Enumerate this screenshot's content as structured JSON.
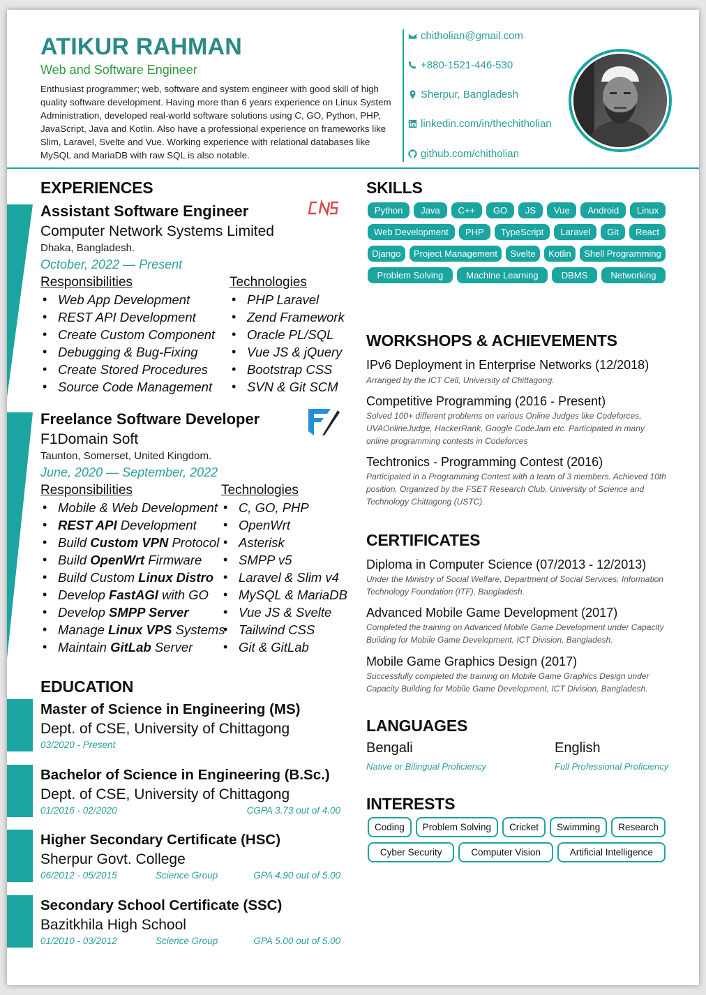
{
  "header": {
    "name": "ATIKUR RAHMAN",
    "role": "Web and Software Engineer",
    "summary": "Enthusiast programmer; web, software and system engineer with good skill of high quality software development. Having more than 6 years experience on Linux System Administration, developed real-world software solutions using C, GO, Python, PHP, JavaScript, Java and Kotlin. Also have a professional experience on frameworks like Slim, Laravel, Svelte and Vue. Working experience with relational databases like MySQL and MariaDB with raw SQL is also notable."
  },
  "contact": {
    "email": "chitholian@gmail.com",
    "phone": "+880-1521-446-530",
    "location": "Sherpur, Bangladesh",
    "linkedin": "linkedin.com/in/thechitholian",
    "github": "github.com/chitholian"
  },
  "experiences": {
    "heading": "EXPERIENCES",
    "jobs": [
      {
        "title": "Assistant Software Engineer",
        "logo_text": "CNS",
        "company": "Computer Network Systems Limited",
        "location": "Dhaka, Bangladesh.",
        "dates": "October, 2022 — Present",
        "resp_heading": "Responsibilities",
        "tech_heading": "Technologies",
        "responsibilities": [
          "Web App Development",
          "REST API Development",
          "Create Custom Component",
          "Debugging & Bug-Fixing",
          "Create Stored Procedures",
          "Source Code Management"
        ],
        "technologies": [
          "PHP Laravel",
          "Zend Framework",
          "Oracle PL/SQL",
          "Vue JS & jQuery",
          "Bootstrap CSS",
          "SVN & Git SCM"
        ]
      },
      {
        "title": "Freelance Software Developer",
        "company": "F1Domain Soft",
        "location": "Taunton, Somerset, United Kingdom.",
        "dates": "June, 2020 — September, 2022",
        "resp_heading": "Responsibilities",
        "tech_heading": "Technologies",
        "responsibilities": [
          {
            "pre": "Mobile & Web Development",
            "bold": "",
            "post": ""
          },
          {
            "pre": "",
            "bold": "REST API",
            "post": " Development"
          },
          {
            "pre": "Build ",
            "bold": "Custom VPN",
            "post": " Protocol"
          },
          {
            "pre": "Build ",
            "bold": "OpenWrt",
            "post": " Firmware"
          },
          {
            "pre": "Build Custom ",
            "bold": "Linux Distro",
            "post": ""
          },
          {
            "pre": "Develop ",
            "bold": "FastAGI",
            "post": " with GO"
          },
          {
            "pre": "Develop ",
            "bold": "SMPP Server",
            "post": ""
          },
          {
            "pre": "Manage ",
            "bold": "Linux VPS",
            "post": " Systems"
          },
          {
            "pre": "Maintain ",
            "bold": "GitLab",
            "post": " Server"
          }
        ],
        "technologies": [
          "C, GO, PHP",
          "OpenWrt",
          "Asterisk",
          "SMPP v5",
          "Laravel & Slim v4",
          "MySQL & MariaDB",
          "Vue JS & Svelte",
          "Tailwind CSS",
          "Git & GitLab"
        ]
      }
    ]
  },
  "education": {
    "heading": "EDUCATION",
    "items": [
      {
        "title": "Master of Science in Engineering (MS)",
        "institution": "Dept. of CSE, University of Chittagong",
        "dates": "03/2020 - Present",
        "group": "",
        "grade": ""
      },
      {
        "title": "Bachelor of Science in Engineering (B.Sc.)",
        "institution": "Dept. of CSE, University of Chittagong",
        "dates": "01/2016 - 02/2020",
        "group": "",
        "grade": "CGPA 3.73 out of 4.00"
      },
      {
        "title": "Higher Secondary Certificate (HSC)",
        "institution": "Sherpur Govt. College",
        "dates": "06/2012 - 05/2015",
        "group": "Science Group",
        "grade": "GPA 4.90 out of 5.00"
      },
      {
        "title": "Secondary School Certificate (SSC)",
        "institution": "Bazitkhila High School",
        "dates": "01/2010 - 03/2012",
        "group": "Science Group",
        "grade": "GPA 5.00 out of 5.00"
      }
    ]
  },
  "skills": {
    "heading": "SKILLS",
    "items": [
      "Python",
      "Java",
      "C++",
      "GO",
      "JS",
      "Vue",
      "Android",
      "Linux",
      "Web Development",
      "PHP",
      "TypeScript",
      "Laravel",
      "Git",
      "React",
      "Django",
      "Project Management",
      "Svelte",
      "Kotlin",
      "Shell Programming",
      "Problem Solving",
      "Machine Learning",
      "DBMS",
      "Networking"
    ]
  },
  "workshops": {
    "heading": "WORKSHOPS & ACHIEVEMENTS",
    "items": [
      {
        "title": "IPv6 Deployment in Enterprise Networks (12/2018)",
        "desc": "Arranged by the ICT Cell, University of Chittagong."
      },
      {
        "title": "Competitive Programming (2016 - Present)",
        "desc": "Solved 100+ different problems on various Online Judges like Codeforces, UVAOnlineJudge, HackerRank, Google CodeJam etc. Participated in many online programming contests in Codeforces"
      },
      {
        "title": "Techtronics - Programming Contest (2016)",
        "desc": "Participated in a Programming Contest with a team of 3 members. Achieved 10th position. Organized by the FSET Research Club, University of Science and Technology Chittagong (USTC)."
      }
    ]
  },
  "certificates": {
    "heading": "CERTIFICATES",
    "items": [
      {
        "title": "Diploma in Computer Science (07/2013 - 12/2013)",
        "desc": "Under the Ministry of Social Welfare, Department of Social Services, Information Technology Foundation (ITF), Bangladesh."
      },
      {
        "title": "Advanced Mobile Game Development (2017)",
        "desc": "Completed the training on Advanced Mobile Game Development under Capacity Building for Mobile Game Development, ICT Division, Bangladesh."
      },
      {
        "title": "Mobile Game Graphics Design (2017)",
        "desc": "Successfully completed the training on Mobile Game Graphics Design under Capacity Building for Mobile Game Development, ICT Division, Bangladesh."
      }
    ]
  },
  "languages": {
    "heading": "LANGUAGES",
    "items": [
      {
        "name": "Bengali",
        "level": "Native or Bilingual Proficiency"
      },
      {
        "name": "English",
        "level": "Full Professional Proficiency"
      }
    ]
  },
  "interests": {
    "heading": "INTERESTS",
    "items": [
      "Coding",
      "Problem Solving",
      "Cricket",
      "Swimming",
      "Research",
      "Cyber Security",
      "Computer Vision",
      "Artificial Intelligence"
    ]
  },
  "icons": {
    "email": "envelope-icon",
    "phone": "phone-icon",
    "location": "map-marker-icon",
    "linkedin": "linkedin-icon",
    "github": "github-icon"
  },
  "colors": {
    "accent": "#1aa5a0",
    "name": "#2a8a87",
    "role": "#2e9a3e",
    "cns_logo": "#d94a4a",
    "f1_logo": "#1f8fd8"
  }
}
